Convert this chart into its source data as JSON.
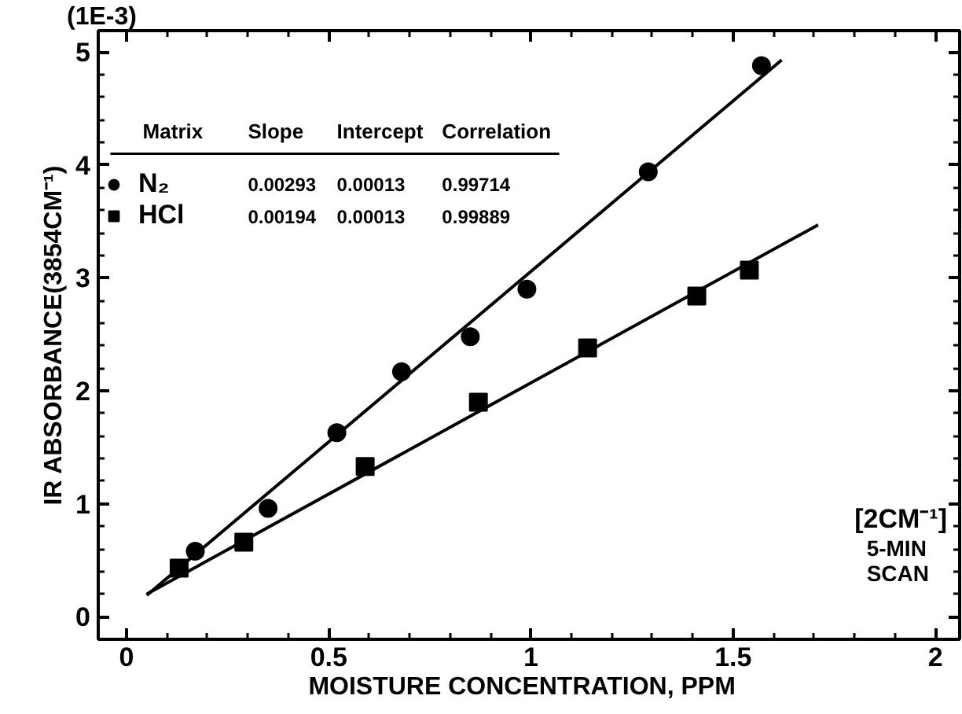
{
  "chart_data": {
    "type": "scatter",
    "xlabel": "MOISTURE   CONCENTRATION, PPM",
    "ylabel": "IR ABSORBANCE(3854CM⁻¹)",
    "xlim": [
      -0.07,
      2.06
    ],
    "ylim": [
      -0.2,
      5.19
    ],
    "xticks": [
      0,
      0.5,
      1,
      1.5,
      2
    ],
    "yticks": [
      0,
      1,
      2,
      3,
      4,
      5
    ],
    "legend": "top left",
    "grid": false,
    "series": [
      {
        "name": "N₂",
        "color": "#000000",
        "marker": "circle",
        "x": [
          0.17,
          0.35,
          0.52,
          0.68,
          0.85,
          0.99,
          1.29,
          1.57
        ],
        "values": [
          0.58,
          0.96,
          1.63,
          2.17,
          2.48,
          2.9,
          3.94,
          4.88
        ]
      },
      {
        "name": "HCl",
        "color": "#000000",
        "marker": "square",
        "x": [
          0.13,
          0.29,
          0.59,
          0.87,
          1.14,
          1.41,
          1.54
        ],
        "values": [
          0.43,
          0.66,
          1.33,
          1.9,
          2.38,
          2.84,
          3.07
        ]
      },
      {
        "type": "line",
        "color": "#000000",
        "x": [
          0.05,
          1.62
        ],
        "values": [
          0.19,
          4.93
        ]
      },
      {
        "type": "line",
        "color": "#000000",
        "x": [
          0.05,
          1.71
        ],
        "values": [
          0.2,
          3.47
        ]
      }
    ],
    "annotations": [
      "Matrix",
      "Slope",
      "Intercept",
      "Correlation",
      "0.00293",
      "0.00013",
      "0.99714",
      "0.00194",
      "0.00013",
      "0.99889",
      "(1E-3)",
      "[2CM⁻¹]",
      "5-MIN\nSCAN"
    ]
  }
}
